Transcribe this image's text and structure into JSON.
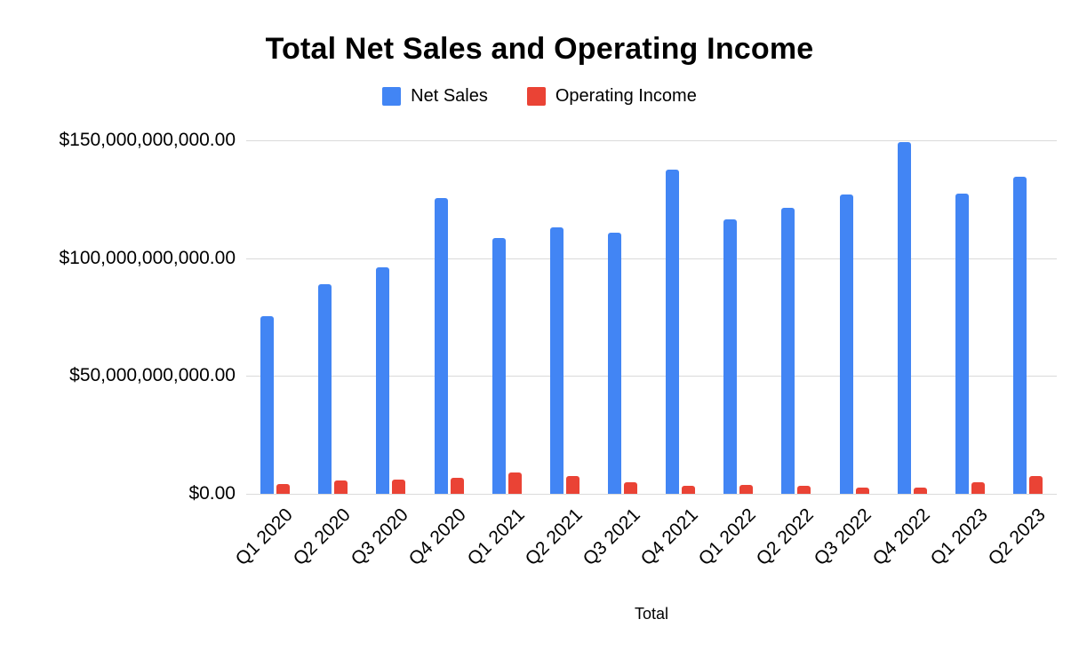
{
  "chart_data": {
    "type": "bar",
    "title": "Total Net Sales and Operating Income",
    "xlabel": "Total",
    "ylabel": "",
    "ylim": [
      0,
      150000000000
    ],
    "grid": true,
    "legend_position": "top",
    "y_ticks": [
      {
        "value": 0,
        "label": "$0.00"
      },
      {
        "value": 50000000000,
        "label": "$50,000,000,000.00"
      },
      {
        "value": 100000000000,
        "label": "$100,000,000,000.00"
      },
      {
        "value": 150000000000,
        "label": "$150,000,000,000.00"
      }
    ],
    "categories": [
      "Q1 2020",
      "Q2 2020",
      "Q3 2020",
      "Q4 2020",
      "Q1 2021",
      "Q2 2021",
      "Q3 2021",
      "Q4 2021",
      "Q1 2022",
      "Q2 2022",
      "Q3 2022",
      "Q4 2022",
      "Q1 2023",
      "Q2 2023"
    ],
    "series": [
      {
        "name": "Net Sales",
        "color": "#4285f4",
        "values": [
          75400000000,
          88900000000,
          96100000000,
          125600000000,
          108500000000,
          113100000000,
          110800000000,
          137400000000,
          116400000000,
          121200000000,
          127100000000,
          149200000000,
          127400000000,
          134400000000
        ]
      },
      {
        "name": "Operating Income",
        "color": "#ea4335",
        "values": [
          4000000000,
          5800000000,
          6200000000,
          6900000000,
          8900000000,
          7700000000,
          4900000000,
          3500000000,
          3700000000,
          3300000000,
          2500000000,
          2700000000,
          4800000000,
          7700000000
        ]
      }
    ]
  }
}
